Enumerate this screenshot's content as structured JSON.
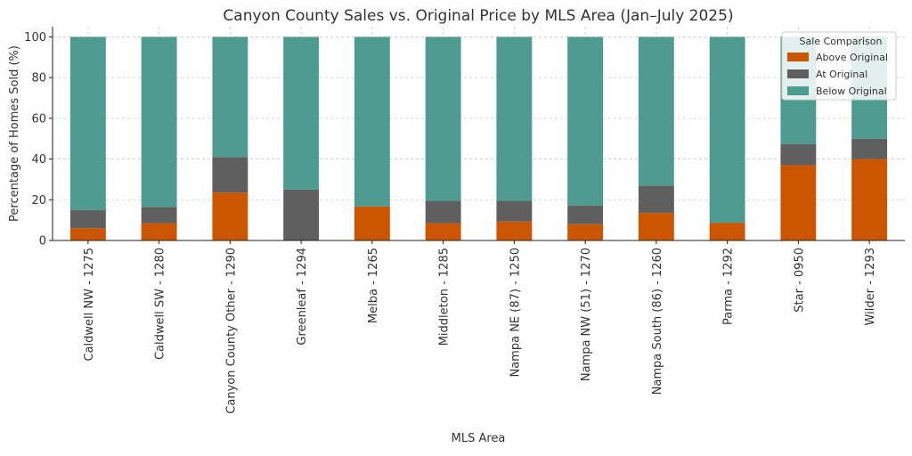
{
  "chart_data": {
    "type": "bar",
    "stacked": true,
    "title": "Canyon County Sales vs. Original Price by MLS Area (Jan–July 2025)",
    "xlabel": "MLS Area",
    "ylabel": "Percentage of Homes Sold (%)",
    "ylim": [
      0,
      105
    ],
    "yticks": [
      0,
      20,
      40,
      60,
      80,
      100
    ],
    "grid": true,
    "legend": {
      "title": "Sale Comparison",
      "placement": "top-right"
    },
    "categories": [
      "Caldwell NW - 1275",
      "Caldwell SW - 1280",
      "Canyon County Other - 1290",
      "Greenleaf - 1294",
      "Melba - 1265",
      "Middleton - 1285",
      "Nampa NE (87) - 1250",
      "Nampa NW (51) - 1270",
      "Nampa South (86) - 1260",
      "Parma - 1292",
      "Star - 0950",
      "Wilder - 1293"
    ],
    "series": [
      {
        "name": "Above Original",
        "color": "#cc5500",
        "values": [
          6,
          8.5,
          23.5,
          0,
          16.7,
          8.5,
          9.3,
          8,
          13.5,
          8.7,
          37,
          40
        ]
      },
      {
        "name": "At Original",
        "color": "#5f5f5f",
        "values": [
          9,
          8,
          17.5,
          25,
          0,
          11,
          10.2,
          9.2,
          13.5,
          0,
          10.4,
          10
        ]
      },
      {
        "name": "Below Original",
        "color": "#4e9c90",
        "values": [
          85,
          83.5,
          59,
          75,
          83.3,
          80.5,
          80.5,
          82.8,
          73,
          91.3,
          52.6,
          50
        ]
      }
    ]
  }
}
